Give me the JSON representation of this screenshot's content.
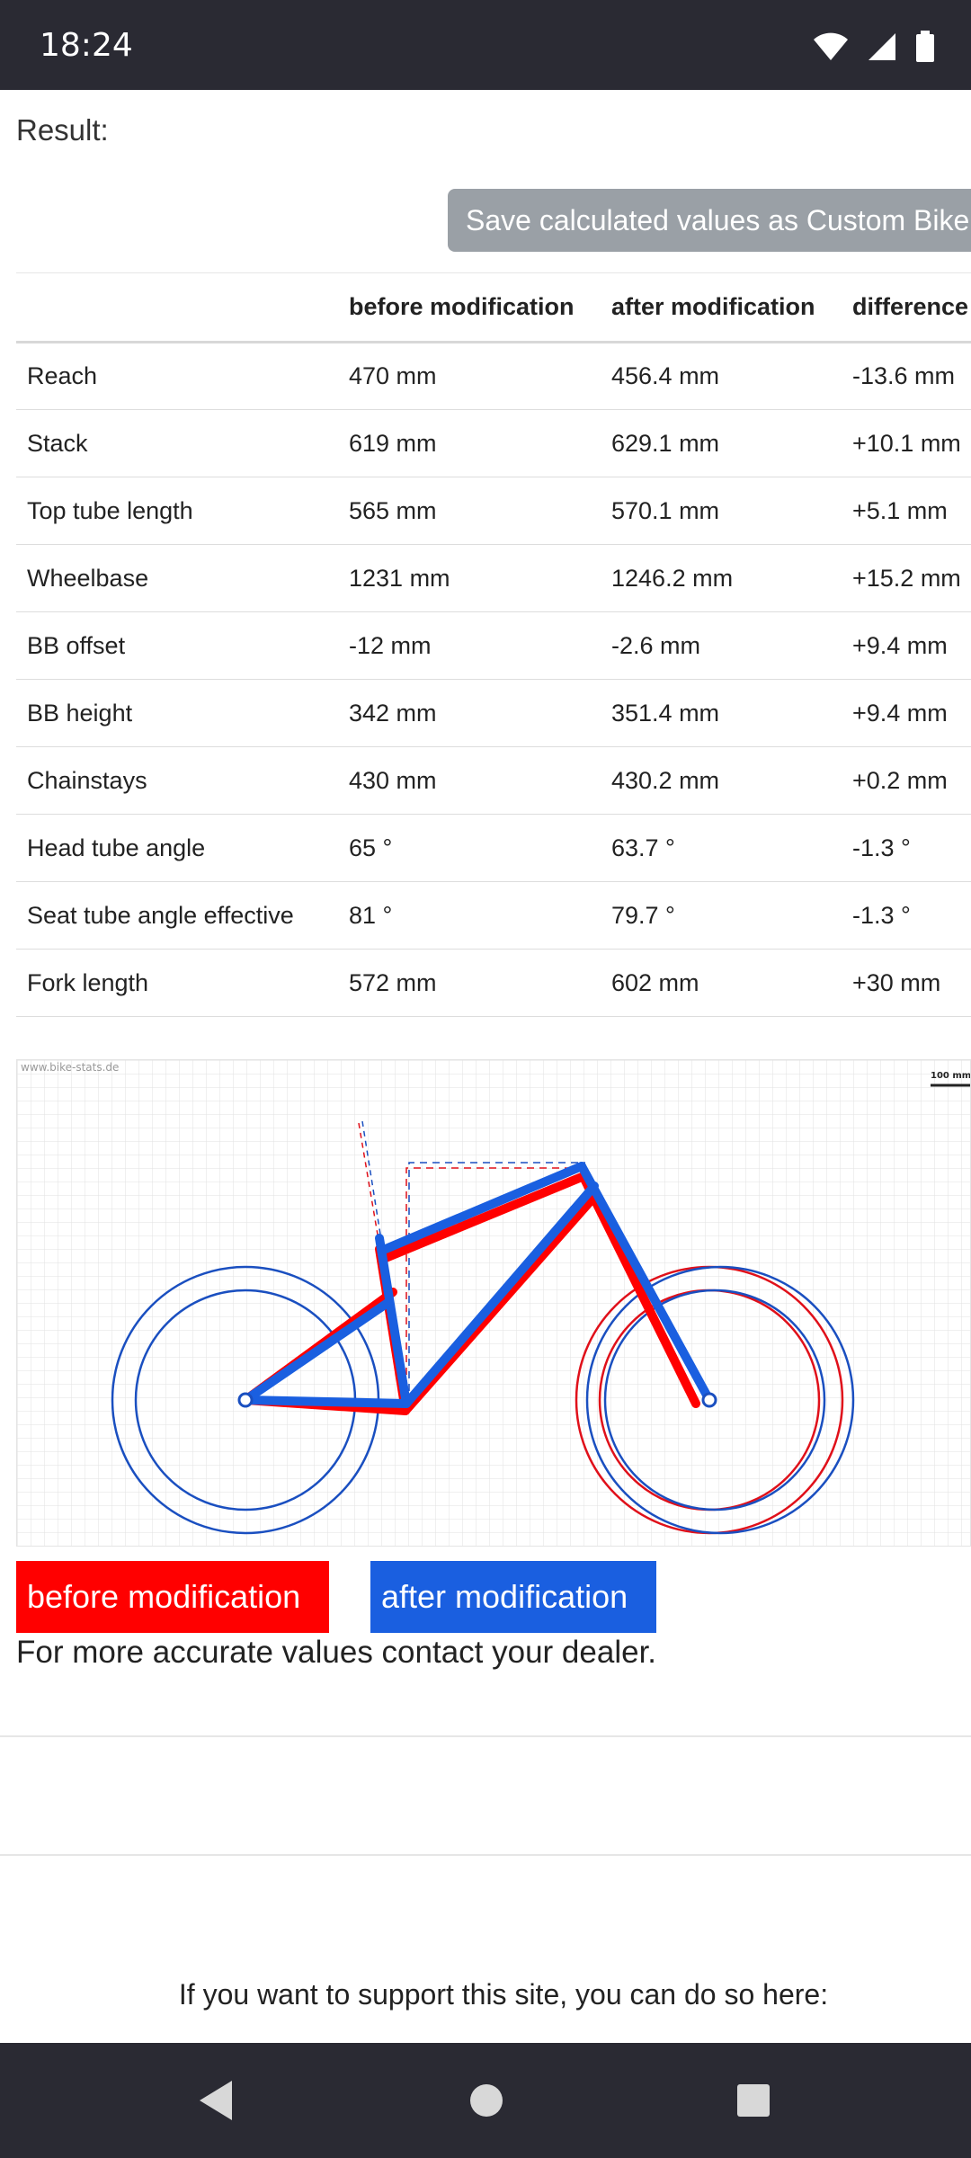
{
  "status_bar": {
    "time": "18:24"
  },
  "result": {
    "label": "Result:",
    "save_button_label": "Save calculated values as Custom Bike"
  },
  "table": {
    "headers": [
      "",
      "before modification",
      "after modification",
      "difference"
    ],
    "rows": [
      {
        "name": "Reach",
        "before": "470 mm",
        "after": "456.4 mm",
        "diff": "-13.6 mm",
        "sign": "neg"
      },
      {
        "name": "Stack",
        "before": "619 mm",
        "after": "629.1 mm",
        "diff": "+10.1 mm",
        "sign": "pos"
      },
      {
        "name": "Top tube length",
        "before": "565 mm",
        "after": "570.1 mm",
        "diff": "+5.1 mm",
        "sign": "pos"
      },
      {
        "name": "Wheelbase",
        "before": "1231 mm",
        "after": "1246.2 mm",
        "diff": "+15.2 mm",
        "sign": "pos"
      },
      {
        "name": "BB offset",
        "before": "-12 mm",
        "after": "-2.6 mm",
        "diff": "+9.4 mm",
        "sign": "pos"
      },
      {
        "name": "BB height",
        "before": "342 mm",
        "after": "351.4 mm",
        "diff": "+9.4 mm",
        "sign": "pos"
      },
      {
        "name": "Chainstays",
        "before": "430 mm",
        "after": "430.2 mm",
        "diff": "+0.2 mm",
        "sign": "pos"
      },
      {
        "name": "Head tube angle",
        "before": "65 °",
        "after": "63.7 °",
        "diff": "-1.3 °",
        "sign": "neg"
      },
      {
        "name": "Seat tube angle effective",
        "before": "81 °",
        "after": "79.7 °",
        "diff": "-1.3 °",
        "sign": "neg"
      },
      {
        "name": "Fork length",
        "before": "572 mm",
        "after": "602 mm",
        "diff": "+30 mm",
        "sign": "pos"
      }
    ]
  },
  "diagram": {
    "watermark": "www.bike-stats.de",
    "scale_label": "100 mm",
    "colors": {
      "before": "#ff0000",
      "after": "#1a5fe0"
    }
  },
  "legend": {
    "before_label": "before modification",
    "after_label": "after modification"
  },
  "note": "For more accurate values contact your dealer.",
  "support_text": "If you want to support this site, you can do so here:"
}
